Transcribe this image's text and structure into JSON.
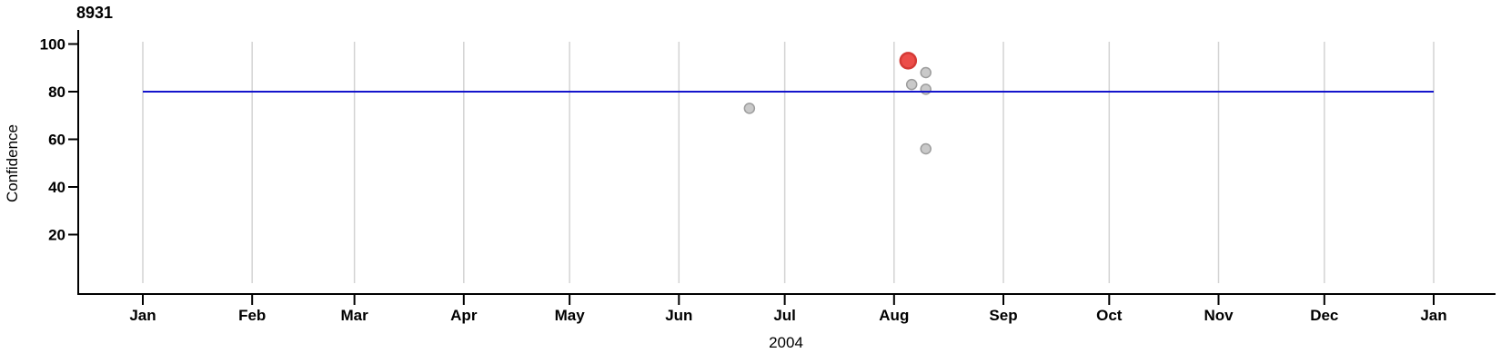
{
  "chart_data": {
    "type": "scatter",
    "title": "8931",
    "xlabel": "2004",
    "ylabel": "Confidence",
    "x_ticks": [
      "Jan",
      "Feb",
      "Mar",
      "Apr",
      "May",
      "Jun",
      "Jul",
      "Aug",
      "Sep",
      "Oct",
      "Nov",
      "Dec",
      "Jan"
    ],
    "x_range_dates": [
      "2004-01-01",
      "2005-01-01"
    ],
    "y_ticks": [
      20,
      40,
      60,
      80,
      100
    ],
    "ylim": [
      0,
      105
    ],
    "grid": "vertical-month-gridlines",
    "legend": "none",
    "reference_line": {
      "axis": "y",
      "value": 80,
      "color": "#1414cc"
    },
    "colors": {
      "default_fill": "#c9c9c9",
      "default_stroke": "#9c9c9c",
      "highlight_fill": "#ec4d49",
      "highlight_stroke": "#d43a36",
      "grid": "#d3d3d3",
      "axis": "#000000"
    },
    "points": [
      {
        "date": "2004-06-21",
        "confidence": 73,
        "highlighted": false
      },
      {
        "date": "2004-08-05",
        "confidence": 93,
        "highlighted": true
      },
      {
        "date": "2004-08-06",
        "confidence": 83,
        "highlighted": false
      },
      {
        "date": "2004-08-10",
        "confidence": 88,
        "highlighted": false
      },
      {
        "date": "2004-08-10",
        "confidence": 81,
        "highlighted": false
      },
      {
        "date": "2004-08-10",
        "confidence": 56,
        "highlighted": false
      }
    ]
  }
}
